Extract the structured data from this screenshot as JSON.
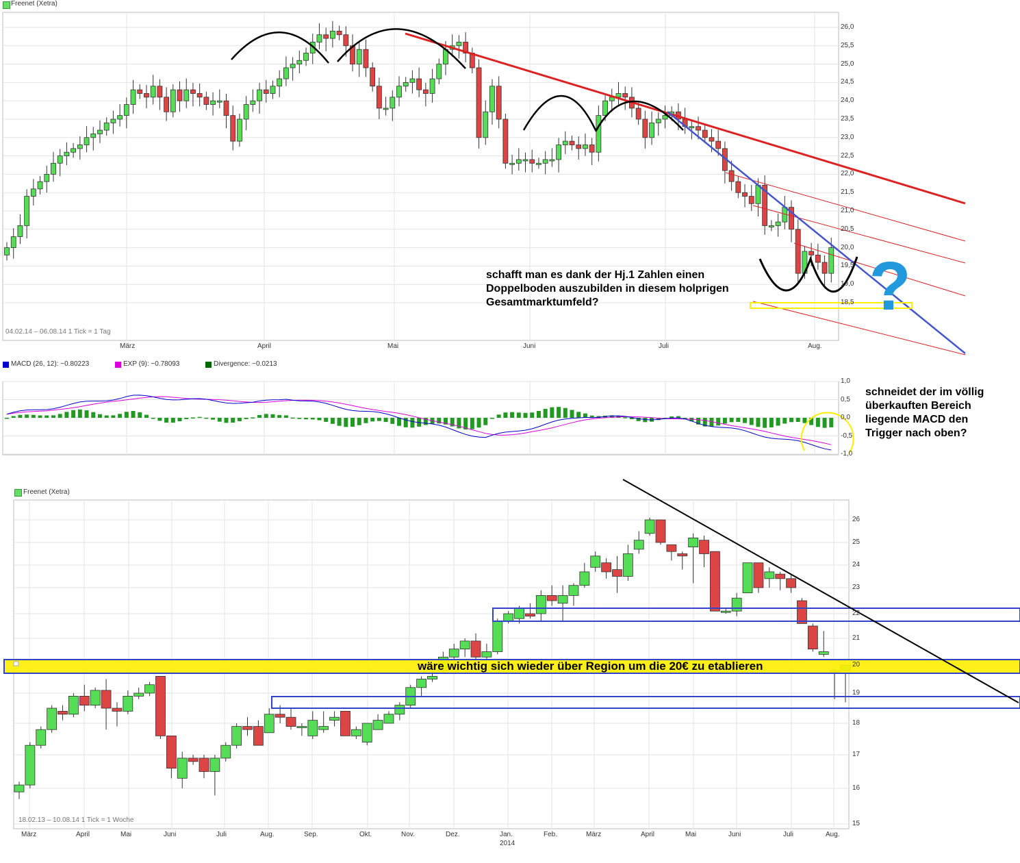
{
  "top_chart": {
    "title": "Freenet (Xetra)",
    "title_icon_color": "#66dd66",
    "range_text": "04.02.14 – 06.08.14   1 Tick = 1 Tag",
    "x_ticks": [
      "März",
      "April",
      "Mai",
      "Juni",
      "Juli",
      "Aug."
    ],
    "y_ticks": [
      "26,0",
      "25,5",
      "25,0",
      "24,5",
      "24,0",
      "23,5",
      "23,0",
      "22,5",
      "22,0",
      "21,5",
      "21,0",
      "20,5",
      "20,0",
      "19,5",
      "19,0",
      "18,5"
    ],
    "annotation": "schafft man es dank der Hj.1 Zahlen einen Doppelboden auszubilden in diesem holprigen Gesamtmarktumfeld?"
  },
  "macd_chart": {
    "legend": [
      {
        "label": "MACD (26, 12): −0.80223",
        "color": "#0000cc"
      },
      {
        "label": "EXP (9): −0.78093",
        "color": "#dd00dd"
      },
      {
        "label": "Divergence: −0.0213",
        "color": "#006600"
      }
    ],
    "y_ticks": [
      "1,0",
      "0,5",
      "0,0",
      "-0,5",
      "-1,0"
    ],
    "annotation": "schneidet der im völlig überkauften Bereich liegende MACD den Trigger nach oben?"
  },
  "bottom_chart": {
    "title": "Freenet (Xetra)",
    "range_text": "18.02.13 – 10.08.14   1 Tick = 1 Woche",
    "x_ticks": [
      "März",
      "April",
      "Mai",
      "Juni",
      "Juli",
      "Aug.",
      "Sep.",
      "Okt.",
      "Nov.",
      "Dez.",
      "Jan.",
      "Feb.",
      "März",
      "April",
      "Mai",
      "Juni",
      "Juli",
      "Aug."
    ],
    "year_label": "2014",
    "y_ticks": [
      "26",
      "25",
      "24",
      "23",
      "22",
      "21",
      "20",
      "19",
      "18",
      "17",
      "16",
      "15"
    ],
    "annotation": "wäre wichtig sich wieder über Region um die 20€ zu etablieren"
  },
  "colors": {
    "up": "#55dd55",
    "down": "#dd4444",
    "trend_red": "#dd2222",
    "trend_blue": "#4455cc",
    "highlight_yellow": "#ffee00",
    "question_mark": "#2299dd"
  },
  "chart_data": [
    {
      "type": "candlestick",
      "title": "Freenet (Xetra)",
      "period": "04.02.14 – 06.08.14",
      "tick": "1 Tick = 1 Tag",
      "ylim": [
        18.2,
        26.2
      ],
      "x_ticks": [
        "März",
        "April",
        "Mai",
        "Juni",
        "Juli",
        "Aug."
      ],
      "close_approx": [
        20.0,
        20.3,
        20.6,
        21.4,
        21.6,
        21.8,
        22.0,
        22.3,
        22.5,
        22.6,
        22.7,
        22.8,
        23.0,
        23.1,
        23.2,
        23.4,
        23.5,
        23.6,
        23.9,
        24.3,
        24.2,
        24.1,
        24.4,
        24.1,
        23.7,
        24.3,
        24.0,
        24.3,
        24.2,
        24.1,
        23.9,
        24.0,
        24.0,
        23.6,
        22.9,
        23.5,
        23.9,
        24.0,
        24.3,
        24.2,
        24.4,
        24.6,
        24.9,
        25.0,
        25.1,
        25.3,
        25.6,
        25.8,
        25.7,
        25.9,
        25.8,
        25.5,
        25.0,
        25.4,
        24.9,
        24.4,
        23.8,
        23.8,
        24.1,
        24.4,
        24.5,
        24.6,
        24.3,
        24.2,
        24.6,
        25.0,
        25.4,
        25.5,
        25.6,
        25.3,
        24.9,
        23.0,
        23.7,
        24.4,
        23.5,
        22.3,
        22.3,
        22.4,
        22.4,
        22.3,
        22.3,
        22.4,
        22.4,
        22.8,
        22.9,
        22.8,
        22.7,
        22.8,
        22.6,
        23.6,
        24.0,
        24.1,
        24.2,
        24.1,
        23.8,
        23.5,
        23.0,
        23.4,
        23.5,
        23.6,
        23.7,
        23.5,
        23.3,
        23.3,
        23.2,
        23.0,
        22.9,
        22.7,
        22.1,
        21.8,
        21.5,
        21.4,
        21.2,
        21.7,
        20.6,
        20.6,
        20.7,
        21.1,
        20.5,
        19.3,
        19.9,
        19.8,
        19.6,
        19.3,
        20.0
      ]
    },
    {
      "type": "line",
      "title": "MACD (26, 12) / EXP (9) / Divergence",
      "ylim": [
        -1.0,
        1.0
      ],
      "series": [
        {
          "name": "MACD (26, 12)",
          "last": -0.80223
        },
        {
          "name": "EXP (9)",
          "last": -0.78093
        },
        {
          "name": "Divergence",
          "last": -0.0213
        }
      ]
    },
    {
      "type": "candlestick",
      "title": "Freenet (Xetra)",
      "period": "18.02.13 – 10.08.14",
      "tick": "1 Tick = 1 Woche",
      "ylim": [
        14.8,
        26.6
      ],
      "x_ticks": [
        "März",
        "April",
        "Mai",
        "Juni",
        "Juli",
        "Aug.",
        "Sep.",
        "Okt.",
        "Nov.",
        "Dez.",
        "Jan.",
        "Feb.",
        "März",
        "April",
        "Mai",
        "Juni",
        "Juli",
        "Aug."
      ],
      "candles_ohlc": [
        [
          15.9,
          16.2,
          15.7,
          16.1
        ],
        [
          16.1,
          17.4,
          16.0,
          17.3
        ],
        [
          17.3,
          17.9,
          17.2,
          17.8
        ],
        [
          17.8,
          18.6,
          17.7,
          18.5
        ],
        [
          18.4,
          18.6,
          18.1,
          18.3
        ],
        [
          18.3,
          19.0,
          18.2,
          18.9
        ],
        [
          18.9,
          19.3,
          18.4,
          18.6
        ],
        [
          18.6,
          19.2,
          18.5,
          19.1
        ],
        [
          19.1,
          19.5,
          17.8,
          18.5
        ],
        [
          18.5,
          18.7,
          17.9,
          18.4
        ],
        [
          18.4,
          19.1,
          18.3,
          18.9
        ],
        [
          18.9,
          19.2,
          18.8,
          19.0
        ],
        [
          19.0,
          19.4,
          18.9,
          19.3
        ],
        [
          19.6,
          19.6,
          17.5,
          17.6
        ],
        [
          17.6,
          17.6,
          16.3,
          16.6
        ],
        [
          16.3,
          17.1,
          16.0,
          16.9
        ],
        [
          16.9,
          17.0,
          16.7,
          16.8
        ],
        [
          16.9,
          17.0,
          16.3,
          16.5
        ],
        [
          16.5,
          17.0,
          15.8,
          16.9
        ],
        [
          16.9,
          17.4,
          16.8,
          17.3
        ],
        [
          17.3,
          18.0,
          17.2,
          17.9
        ],
        [
          17.9,
          18.2,
          17.6,
          17.8
        ],
        [
          17.9,
          18.1,
          17.3,
          17.3
        ],
        [
          17.7,
          18.5,
          17.7,
          18.3
        ],
        [
          18.3,
          18.6,
          18.0,
          18.2
        ],
        [
          18.2,
          18.5,
          17.8,
          17.9
        ],
        [
          17.9,
          18.0,
          17.6,
          17.9
        ],
        [
          17.6,
          18.4,
          17.5,
          18.1
        ],
        [
          17.8,
          18.4,
          17.7,
          17.9
        ],
        [
          18.1,
          18.4,
          17.9,
          18.2
        ],
        [
          18.4,
          18.4,
          17.6,
          17.6
        ],
        [
          17.6,
          17.9,
          17.5,
          17.8
        ],
        [
          17.4,
          18.0,
          17.3,
          18.0
        ],
        [
          17.8,
          18.3,
          17.8,
          18.1
        ],
        [
          18.0,
          18.4,
          18.0,
          18.3
        ],
        [
          18.3,
          18.7,
          18.1,
          18.6
        ],
        [
          18.6,
          19.3,
          18.5,
          19.2
        ],
        [
          19.2,
          19.6,
          18.9,
          19.5
        ],
        [
          19.5,
          19.8,
          19.4,
          19.6
        ],
        [
          19.8,
          20.5,
          19.7,
          20.3
        ],
        [
          20.3,
          20.8,
          20.1,
          20.6
        ],
        [
          20.6,
          21.0,
          20.3,
          20.9
        ],
        [
          20.9,
          21.2,
          20.2,
          20.3
        ],
        [
          20.3,
          20.8,
          20.2,
          20.5
        ],
        [
          20.5,
          21.8,
          20.4,
          21.7
        ],
        [
          21.7,
          22.1,
          21.6,
          22.0
        ],
        [
          21.8,
          22.3,
          21.6,
          22.2
        ],
        [
          22.0,
          22.4,
          21.8,
          21.9
        ],
        [
          22.0,
          22.9,
          21.7,
          22.7
        ],
        [
          22.7,
          23.1,
          22.3,
          22.5
        ],
        [
          22.4,
          23.1,
          21.7,
          22.7
        ],
        [
          22.7,
          23.2,
          22.3,
          23.1
        ],
        [
          23.1,
          24.1,
          23.0,
          23.7
        ],
        [
          23.9,
          24.6,
          23.7,
          24.4
        ],
        [
          24.1,
          24.3,
          23.4,
          23.7
        ],
        [
          23.8,
          24.4,
          22.8,
          23.5
        ],
        [
          23.5,
          24.9,
          23.3,
          24.5
        ],
        [
          24.7,
          25.5,
          24.5,
          25.1
        ],
        [
          25.4,
          26.1,
          25.3,
          26.0
        ],
        [
          26.0,
          26.0,
          24.9,
          25.0
        ],
        [
          24.9,
          24.9,
          24.2,
          24.6
        ],
        [
          24.5,
          24.6,
          23.8,
          24.4
        ],
        [
          24.8,
          25.4,
          23.2,
          25.2
        ],
        [
          25.1,
          25.3,
          23.9,
          24.5
        ],
        [
          24.6,
          24.6,
          22.5,
          22.1
        ],
        [
          22.1,
          22.2,
          22.0,
          22.1
        ],
        [
          22.1,
          22.8,
          21.9,
          22.6
        ],
        [
          22.8,
          24.1,
          22.8,
          24.1
        ],
        [
          24.1,
          24.1,
          22.8,
          23.0
        ],
        [
          23.4,
          23.9,
          23.0,
          23.7
        ],
        [
          23.6,
          23.7,
          22.9,
          23.4
        ],
        [
          23.4,
          23.6,
          22.8,
          23.0
        ],
        [
          22.5,
          22.6,
          21.6,
          21.6
        ],
        [
          21.5,
          21.6,
          20.5,
          20.6
        ],
        [
          20.4,
          21.3,
          20.3,
          20.5
        ],
        [
          19.8,
          19.9,
          18.8,
          19.8
        ],
        [
          19.8,
          20.0,
          18.7,
          20.0
        ]
      ]
    }
  ]
}
